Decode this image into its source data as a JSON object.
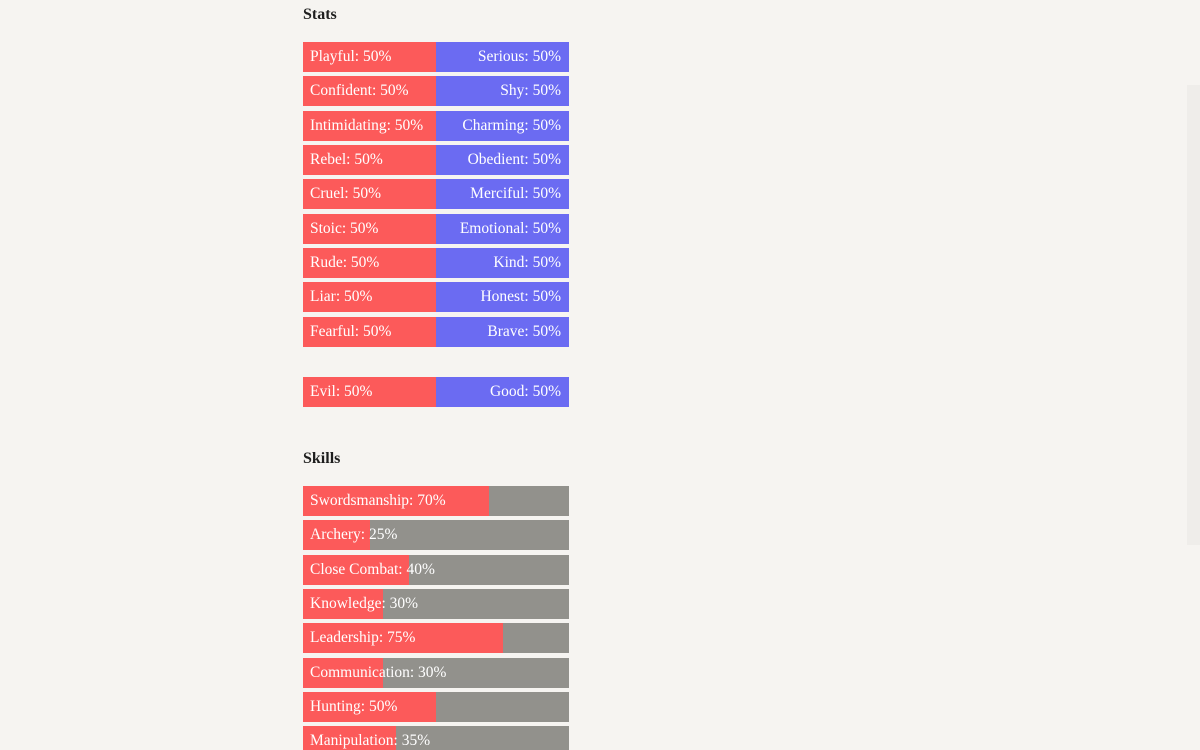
{
  "stats": {
    "title": "Stats",
    "pairs": [
      {
        "left": "Playful: 50%",
        "right": "Serious: 50%",
        "level": 0.5
      },
      {
        "left": "Confident: 50%",
        "right": "Shy: 50%",
        "level": 0.5
      },
      {
        "left": "Intimidating: 50%",
        "right": "Charming: 50%",
        "level": 0.5
      },
      {
        "left": "Rebel: 50%",
        "right": "Obedient: 50%",
        "level": 0.5
      },
      {
        "left": "Cruel: 50%",
        "right": "Merciful: 50%",
        "level": 0.5
      },
      {
        "left": "Stoic: 50%",
        "right": "Emotional: 50%",
        "level": 0.5
      },
      {
        "left": "Rude: 50%",
        "right": "Kind: 50%",
        "level": 0.5
      },
      {
        "left": "Liar: 50%",
        "right": "Honest: 50%",
        "level": 0.5
      },
      {
        "left": "Fearful: 50%",
        "right": "Brave: 50%",
        "level": 0.5
      }
    ],
    "morality": {
      "left": "Evil: 50%",
      "right": "Good: 50%",
      "level": 0.5
    }
  },
  "skills": {
    "title": "Skills",
    "items": [
      {
        "label": "Swordsmanship: 70%",
        "level": 0.7
      },
      {
        "label": "Archery: 25%",
        "level": 0.25
      },
      {
        "label": "Close Combat: 40%",
        "level": 0.4
      },
      {
        "label": "Knowledge: 30%",
        "level": 0.3
      },
      {
        "label": "Leadership: 75%",
        "level": 0.75
      },
      {
        "label": "Communication: 30%",
        "level": 0.3
      },
      {
        "label": "Hunting: 50%",
        "level": 0.5
      },
      {
        "label": "Manipulation: 35%",
        "level": 0.35
      }
    ]
  },
  "colors": {
    "left_fill": "#fc5a5a",
    "right_fill": "#6b6bf2",
    "skill_track": "#92918c",
    "background": "#f6f4f1"
  }
}
